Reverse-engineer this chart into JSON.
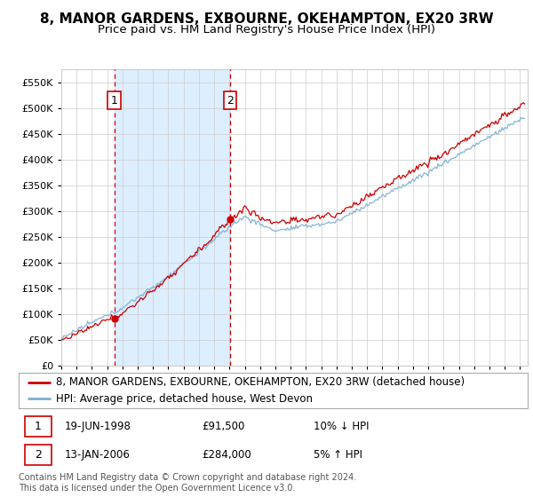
{
  "title": "8, MANOR GARDENS, EXBOURNE, OKEHAMPTON, EX20 3RW",
  "subtitle": "Price paid vs. HM Land Registry's House Price Index (HPI)",
  "ylim": [
    0,
    575000
  ],
  "xlim_start": 1995.0,
  "xlim_end": 2025.5,
  "yticks": [
    0,
    50000,
    100000,
    150000,
    200000,
    250000,
    300000,
    350000,
    400000,
    450000,
    500000,
    550000
  ],
  "ytick_labels": [
    "£0",
    "£50K",
    "£100K",
    "£150K",
    "£200K",
    "£250K",
    "£300K",
    "£350K",
    "£400K",
    "£450K",
    "£500K",
    "£550K"
  ],
  "xtick_years": [
    1995,
    1996,
    1997,
    1998,
    1999,
    2000,
    2001,
    2002,
    2003,
    2004,
    2005,
    2006,
    2007,
    2008,
    2009,
    2010,
    2011,
    2012,
    2013,
    2014,
    2015,
    2016,
    2017,
    2018,
    2019,
    2020,
    2021,
    2022,
    2023,
    2024,
    2025
  ],
  "sale1_x": 1998.46,
  "sale1_y": 91500,
  "sale2_x": 2006.04,
  "sale2_y": 284000,
  "sale1_date": "19-JUN-1998",
  "sale1_price": "£91,500",
  "sale1_hpi": "10% ↓ HPI",
  "sale2_date": "13-JAN-2006",
  "sale2_price": "£284,000",
  "sale2_hpi": "5% ↑ HPI",
  "line_color_red": "#cc0000",
  "line_color_blue": "#7aadd4",
  "shaded_color": "#ddeeff",
  "grid_color": "#cccccc",
  "background_color": "#ffffff",
  "legend_label_red": "8, MANOR GARDENS, EXBOURNE, OKEHAMPTON, EX20 3RW (detached house)",
  "legend_label_blue": "HPI: Average price, detached house, West Devon",
  "footer_text": "Contains HM Land Registry data © Crown copyright and database right 2024.\nThis data is licensed under the Open Government Licence v3.0.",
  "title_fontsize": 11,
  "subtitle_fontsize": 9.5,
  "tick_fontsize": 8,
  "legend_fontsize": 8.5,
  "footer_fontsize": 7
}
